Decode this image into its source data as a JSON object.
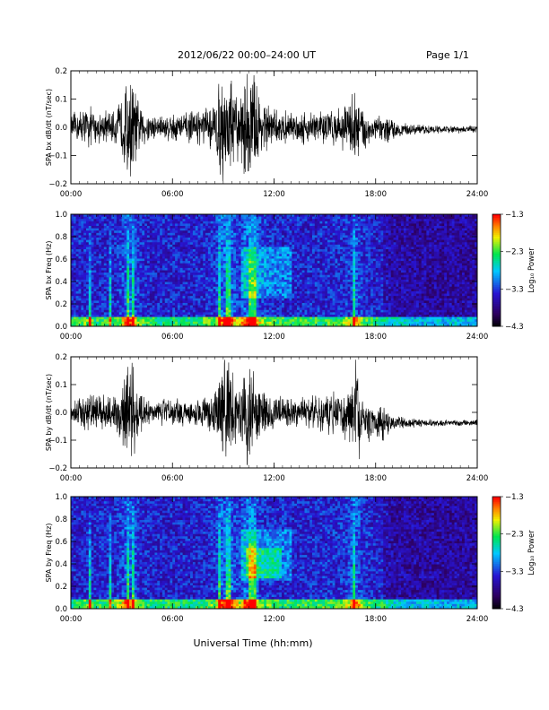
{
  "header": {
    "title": "2012/06/22  00:00–24:00 UT",
    "page": "Page 1/1"
  },
  "xlabel": "Universal Time (hh:mm)",
  "chart_data": [
    {
      "type": "line",
      "title": "",
      "ylabel": "SPA bx dB/dt (nT/sec)",
      "x_ticks": [
        "00:00",
        "06:00",
        "12:00",
        "18:00",
        "24:00"
      ],
      "xlim": [
        0,
        24
      ],
      "ylim": [
        -0.2,
        0.2
      ],
      "y_ticks": [
        "0.2",
        "0.1",
        "0.0",
        "−0.1",
        "−0.2"
      ],
      "envelope": {
        "x": [
          0,
          0.5,
          1,
          1.5,
          2,
          2.5,
          3,
          3.3,
          3.6,
          3.9,
          4.2,
          5,
          6,
          7,
          8,
          8.5,
          8.8,
          9.1,
          9.4,
          9.7,
          10,
          10.3,
          10.6,
          10.9,
          11.2,
          11.6,
          12,
          13,
          14,
          15,
          16,
          16.5,
          16.8,
          17.2,
          18,
          18.5,
          19,
          20,
          21,
          22,
          23,
          24
        ],
        "amplitude": [
          0.05,
          0.07,
          0.09,
          0.06,
          0.07,
          0.06,
          0.12,
          0.2,
          0.22,
          0.12,
          0.08,
          0.05,
          0.06,
          0.06,
          0.08,
          0.1,
          0.2,
          0.22,
          0.22,
          0.15,
          0.12,
          0.22,
          0.24,
          0.22,
          0.12,
          0.1,
          0.07,
          0.06,
          0.07,
          0.07,
          0.08,
          0.12,
          0.18,
          0.09,
          0.05,
          0.06,
          0.04,
          0.02,
          0.018,
          0.015,
          0.015,
          0.015
        ]
      }
    },
    {
      "type": "heatmap",
      "title": "",
      "ylabel": "SPA bx Freq (Hz)",
      "x_ticks": [
        "00:00",
        "06:00",
        "12:00",
        "18:00",
        "24:00"
      ],
      "xlim": [
        0,
        24
      ],
      "ylim": [
        0.0,
        1.0
      ],
      "y_ticks": [
        "1.0",
        "0.8",
        "0.6",
        "0.4",
        "0.2",
        "0.0"
      ],
      "colorbar": {
        "label": "Log₁₀ Power",
        "ticks": [
          "−1.3",
          "−2.3",
          "−3.3",
          "−4.3"
        ],
        "range": [
          -4.3,
          -1.3
        ]
      },
      "bright_columns_hours": [
        1.1,
        2.3,
        3.4,
        3.7,
        8.8,
        9.3,
        10.6,
        10.8,
        16.7
      ],
      "low_freq_band_max_hours": [
        9.3,
        10.6
      ]
    },
    {
      "type": "line",
      "title": "",
      "ylabel": "SPA by dB/dt (nT/sec)",
      "x_ticks": [
        "00:00",
        "06:00",
        "12:00",
        "18:00",
        "24:00"
      ],
      "xlim": [
        0,
        24
      ],
      "ylim": [
        -0.2,
        0.2
      ],
      "y_ticks": [
        "0.2",
        "0.1",
        "0.0",
        "−0.1",
        "−0.2"
      ],
      "envelope": {
        "x": [
          0,
          0.5,
          1,
          1.5,
          2,
          2.5,
          3,
          3.3,
          3.6,
          3.9,
          4.2,
          5,
          6,
          7,
          8,
          8.5,
          8.8,
          9.1,
          9.4,
          9.7,
          10,
          10.3,
          10.6,
          10.9,
          11.2,
          11.6,
          12,
          13,
          14,
          15,
          16,
          16.5,
          16.8,
          17.2,
          18,
          18.5,
          19,
          20,
          21,
          22,
          23,
          24
        ],
        "amplitude": [
          0.04,
          0.06,
          0.08,
          0.06,
          0.07,
          0.07,
          0.12,
          0.22,
          0.2,
          0.12,
          0.07,
          0.05,
          0.06,
          0.05,
          0.06,
          0.1,
          0.2,
          0.22,
          0.22,
          0.14,
          0.12,
          0.22,
          0.22,
          0.18,
          0.1,
          0.09,
          0.07,
          0.06,
          0.07,
          0.08,
          0.09,
          0.14,
          0.22,
          0.1,
          0.05,
          0.08,
          0.03,
          0.02,
          0.015,
          0.012,
          0.012,
          0.012
        ]
      }
    },
    {
      "type": "heatmap",
      "title": "",
      "ylabel": "SPA by Freq (Hz)",
      "x_ticks": [
        "00:00",
        "06:00",
        "12:00",
        "18:00",
        "24:00"
      ],
      "xlim": [
        0,
        24
      ],
      "ylim": [
        0.0,
        1.0
      ],
      "y_ticks": [
        "1.0",
        "0.8",
        "0.6",
        "0.4",
        "0.2",
        "0.0"
      ],
      "colorbar": {
        "label": "Log₁₀ Power",
        "ticks": [
          "−1.3",
          "−2.3",
          "−3.3",
          "−4.3"
        ],
        "range": [
          -4.3,
          -1.3
        ]
      },
      "bright_columns_hours": [
        1.1,
        2.3,
        3.4,
        3.7,
        8.8,
        9.3,
        10.6,
        10.8,
        16.7
      ],
      "low_freq_band_max_hours": [
        9.3,
        10.6
      ]
    }
  ]
}
